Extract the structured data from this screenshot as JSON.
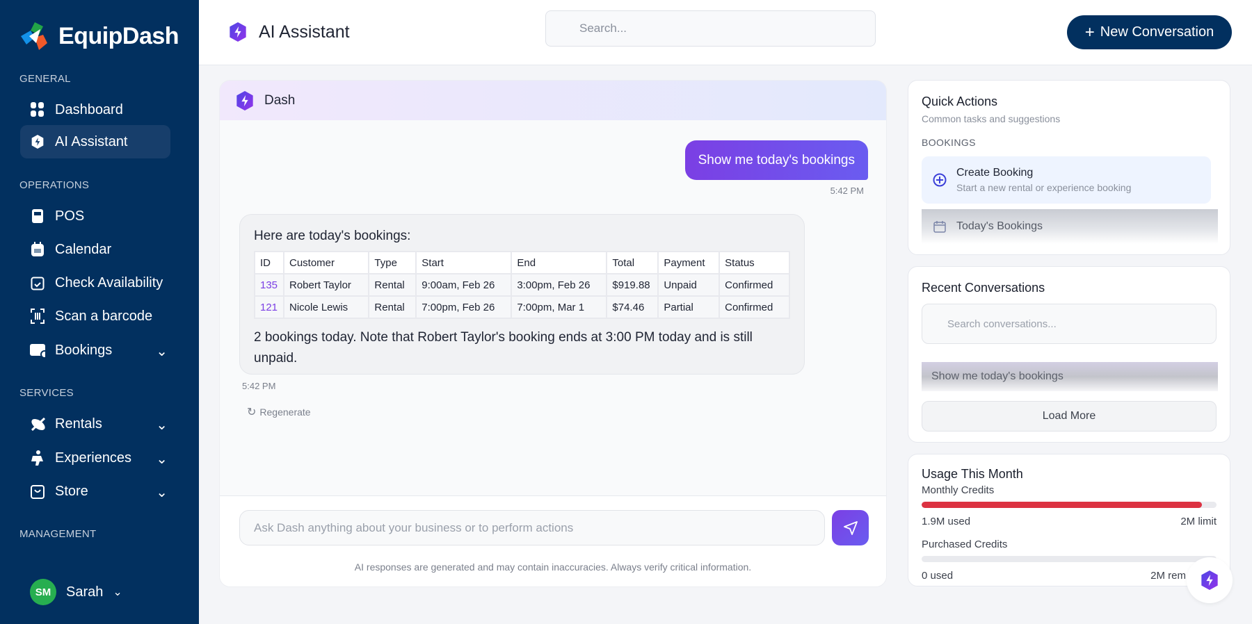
{
  "brand": {
    "name": "EquipDash"
  },
  "sidebar": {
    "sections": [
      "GENERAL",
      "OPERATIONS",
      "SERVICES",
      "MANAGEMENT"
    ],
    "items": [
      {
        "label": "Dashboard",
        "icon": "grid-icon"
      },
      {
        "label": "AI Assistant",
        "icon": "ai-hexagon-icon",
        "active": true
      },
      {
        "label": "POS",
        "icon": "pos-terminal-icon"
      },
      {
        "label": "Calendar",
        "icon": "calendar-icon"
      },
      {
        "label": "Check Availability",
        "icon": "calendar-check-icon"
      },
      {
        "label": "Scan a barcode",
        "icon": "barcode-scan-icon"
      },
      {
        "label": "Bookings",
        "icon": "bookings-icon"
      },
      {
        "label": "Rentals",
        "icon": "kayak-icon"
      },
      {
        "label": "Experiences",
        "icon": "experience-icon"
      },
      {
        "label": "Store",
        "icon": "shopping-bag-icon"
      }
    ],
    "user": {
      "initials": "SM",
      "name": "Sarah"
    }
  },
  "header": {
    "title": "AI Assistant",
    "search_placeholder": "Search...",
    "new_conversation": "New Conversation"
  },
  "chat": {
    "bot_name": "Dash",
    "user_message": "Show me today's bookings",
    "user_time": "5:42 PM",
    "assistant": {
      "intro": "Here are today's bookings:",
      "columns": [
        "ID",
        "Customer",
        "Type",
        "Start",
        "End",
        "Total",
        "Payment",
        "Status"
      ],
      "rows": [
        [
          "135",
          "Robert Taylor",
          "Rental",
          "9:00am, Feb 26",
          "3:00pm, Feb 26",
          "$919.88",
          "Unpaid",
          "Confirmed"
        ],
        [
          "121",
          "Nicole Lewis",
          "Rental",
          "7:00pm, Feb 26",
          "7:00pm, Mar 1",
          "$74.46",
          "Partial",
          "Confirmed"
        ]
      ],
      "outro": "2 bookings today. Note that Robert Taylor's booking ends at 3:00 PM today and is still unpaid.",
      "time": "5:42 PM",
      "regenerate": "Regenerate"
    },
    "input_placeholder": "Ask Dash anything about your business or to perform actions",
    "disclaimer": "AI responses are generated and may contain inaccuracies. Always verify critical information."
  },
  "quick_actions": {
    "title": "Quick Actions",
    "subtitle": "Common tasks and suggestions",
    "category": "BOOKINGS",
    "items": [
      {
        "title": "Create Booking",
        "desc": "Start a new rental or experience booking"
      },
      {
        "title": "Today's Bookings"
      }
    ]
  },
  "recent": {
    "title": "Recent Conversations",
    "search_placeholder": "Search conversations...",
    "items": [
      "Show me today's bookings"
    ],
    "load_more": "Load More"
  },
  "usage": {
    "title": "Usage This Month",
    "monthly": {
      "label": "Monthly Credits",
      "used": "1.9M used",
      "limit": "2M limit",
      "percent": 95,
      "color": "#dc3242"
    },
    "purchased": {
      "label": "Purchased Credits",
      "used": "0 used",
      "remaining": "2M rem",
      "percent": 0
    }
  }
}
